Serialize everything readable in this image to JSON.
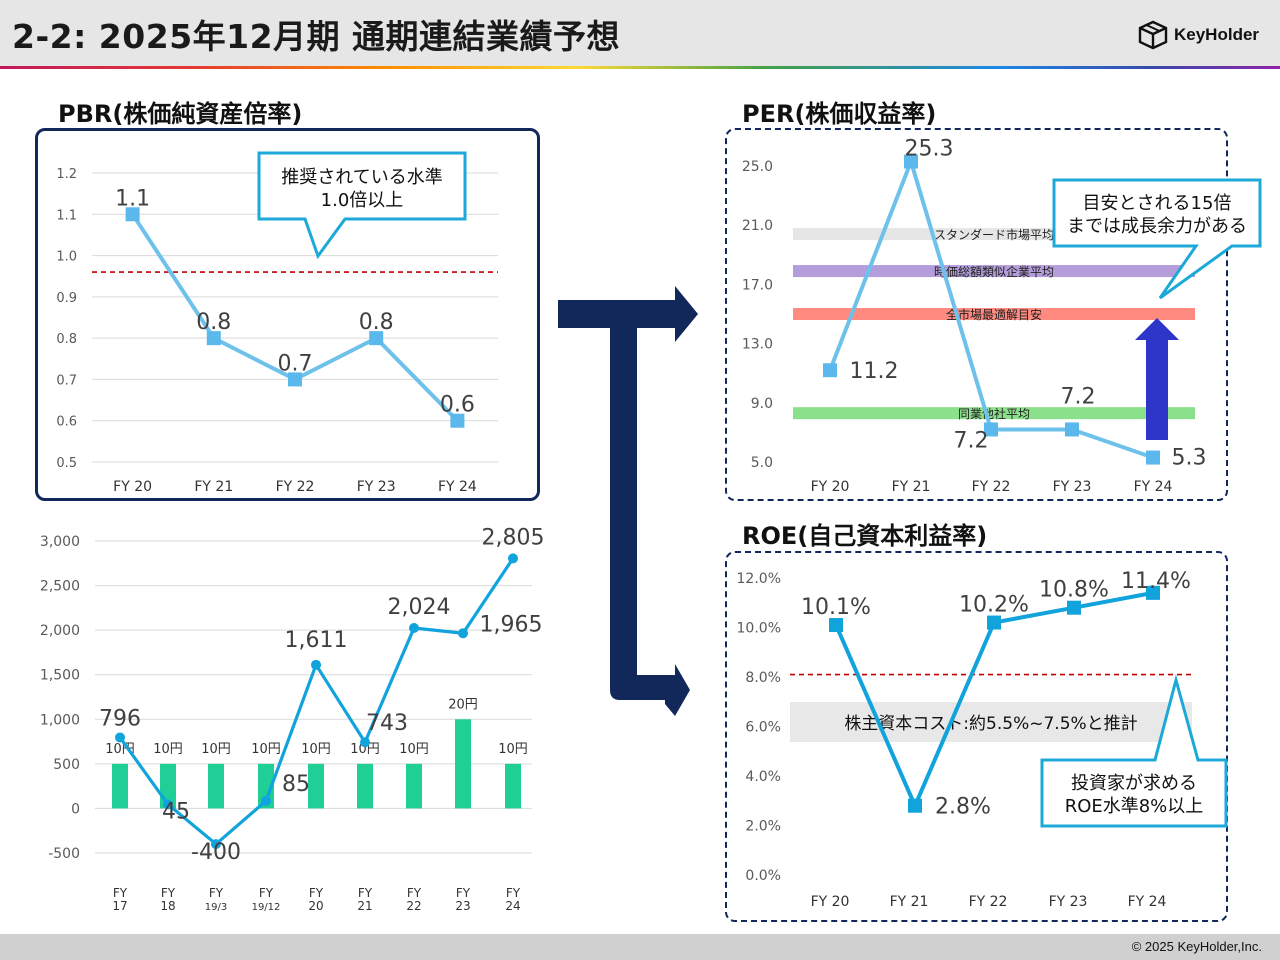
{
  "page": {
    "title": "2-2:  2025年12月期 通期連結業績予想",
    "logo_text": "KeyHolder",
    "copyright": "© 2025 KeyHolder,Inc."
  },
  "sections": {
    "pbr_title": "PBR(株価純資産倍率)",
    "per_title": "PER(株価収益率)",
    "roe_title": "ROE(自己資本利益率)"
  },
  "colors": {
    "navy": "#12285a",
    "line_light_blue": "#6ec1ea",
    "marker_light_blue": "#5bb8ec",
    "line_blue": "#11a3dc",
    "bar_green": "#1fcf96",
    "callout_border": "#1ca9d8",
    "ref_red": "#c00000",
    "arrow_blue": "#2e36c9"
  },
  "chart_data": [
    {
      "id": "pbr",
      "type": "line",
      "categories": [
        "FY 20",
        "FY 21",
        "FY 22",
        "FY 23",
        "FY 24"
      ],
      "values": [
        1.1,
        0.8,
        0.7,
        0.8,
        0.6
      ],
      "labels": [
        "1.1",
        "0.8",
        "0.7",
        "0.8",
        "0.6"
      ],
      "ylim": [
        0.5,
        1.2
      ],
      "yticks": [
        "0.5",
        "0.6",
        "0.7",
        "0.8",
        "0.9",
        "1.0",
        "1.1",
        "1.2"
      ],
      "reference_line": 0.96,
      "callout": [
        "推奨されている水準",
        "1.0倍以上"
      ],
      "grid": true
    },
    {
      "id": "dividend_eps",
      "type": "bar",
      "categories": [
        [
          "FY",
          "17"
        ],
        [
          "FY",
          "18"
        ],
        [
          "FY",
          "19/3"
        ],
        [
          "FY",
          "19/12"
        ],
        [
          "FY",
          "20"
        ],
        [
          "FY",
          "21"
        ],
        [
          "FY",
          "22"
        ],
        [
          "FY",
          "23"
        ],
        [
          "FY",
          "24"
        ]
      ],
      "bar_values": [
        500,
        500,
        500,
        500,
        500,
        500,
        500,
        1000,
        500
      ],
      "bar_labels": [
        "10円",
        "10円",
        "10円",
        "10円",
        "10円",
        "10円",
        "10円",
        "20円",
        "10円"
      ],
      "line_values": [
        796,
        45,
        -400,
        85,
        1611,
        743,
        2024,
        1965,
        2805
      ],
      "line_labels": [
        "796",
        "45",
        "-400",
        "85",
        "1,611",
        "743",
        "2,024",
        "1,965",
        "2,805"
      ],
      "ylim": [
        -500,
        3000
      ],
      "yticks": [
        "3,000",
        "2,500",
        "2,000",
        "1,500",
        "1,000",
        "500",
        "0",
        "-500"
      ],
      "grid": true
    },
    {
      "id": "per",
      "type": "line",
      "categories": [
        "FY 20",
        "FY 21",
        "FY 22",
        "FY 23",
        "FY 24"
      ],
      "values": [
        11.2,
        25.3,
        7.2,
        7.2,
        5.3
      ],
      "labels": [
        "11.2",
        "25.3",
        "7.2",
        "7.2",
        "5.3"
      ],
      "ylim": [
        5.0,
        25.0
      ],
      "yticks": [
        "25.0",
        "21.0",
        "17.0",
        "13.0",
        "9.0",
        "5.0"
      ],
      "bands": [
        {
          "value": 20.4,
          "label": "スタンダード市場平均",
          "color": "#e6e6e6"
        },
        {
          "value": 17.9,
          "label": "時価総額類似企業平均",
          "color": "#b39ddb"
        },
        {
          "value": 15.0,
          "label": "全市場最適解目安",
          "color": "#ff8a80"
        },
        {
          "value": 8.3,
          "label": "同業他社平均",
          "color": "#8be08b"
        }
      ],
      "callout": [
        "目安とされる15倍",
        "までは成長余力がある"
      ]
    },
    {
      "id": "roe",
      "type": "line",
      "categories": [
        "FY 20",
        "FY 21",
        "FY 22",
        "FY 23",
        "FY 24"
      ],
      "values": [
        10.1,
        2.8,
        10.2,
        10.8,
        11.4
      ],
      "labels": [
        "10.1%",
        "2.8%",
        "10.2%",
        "10.8%",
        "11.4%"
      ],
      "ylim": [
        0,
        12
      ],
      "yticks": [
        "12.0%",
        "10.0%",
        "8.0%",
        "6.0%",
        "4.0%",
        "2.0%",
        "0.0%"
      ],
      "reference_line": 8.1,
      "band_text": "株主資本コスト:約5.5%~7.5%と推計",
      "callout": [
        "投資家が求める",
        "ROE水準8%以上"
      ],
      "grid": false
    }
  ]
}
